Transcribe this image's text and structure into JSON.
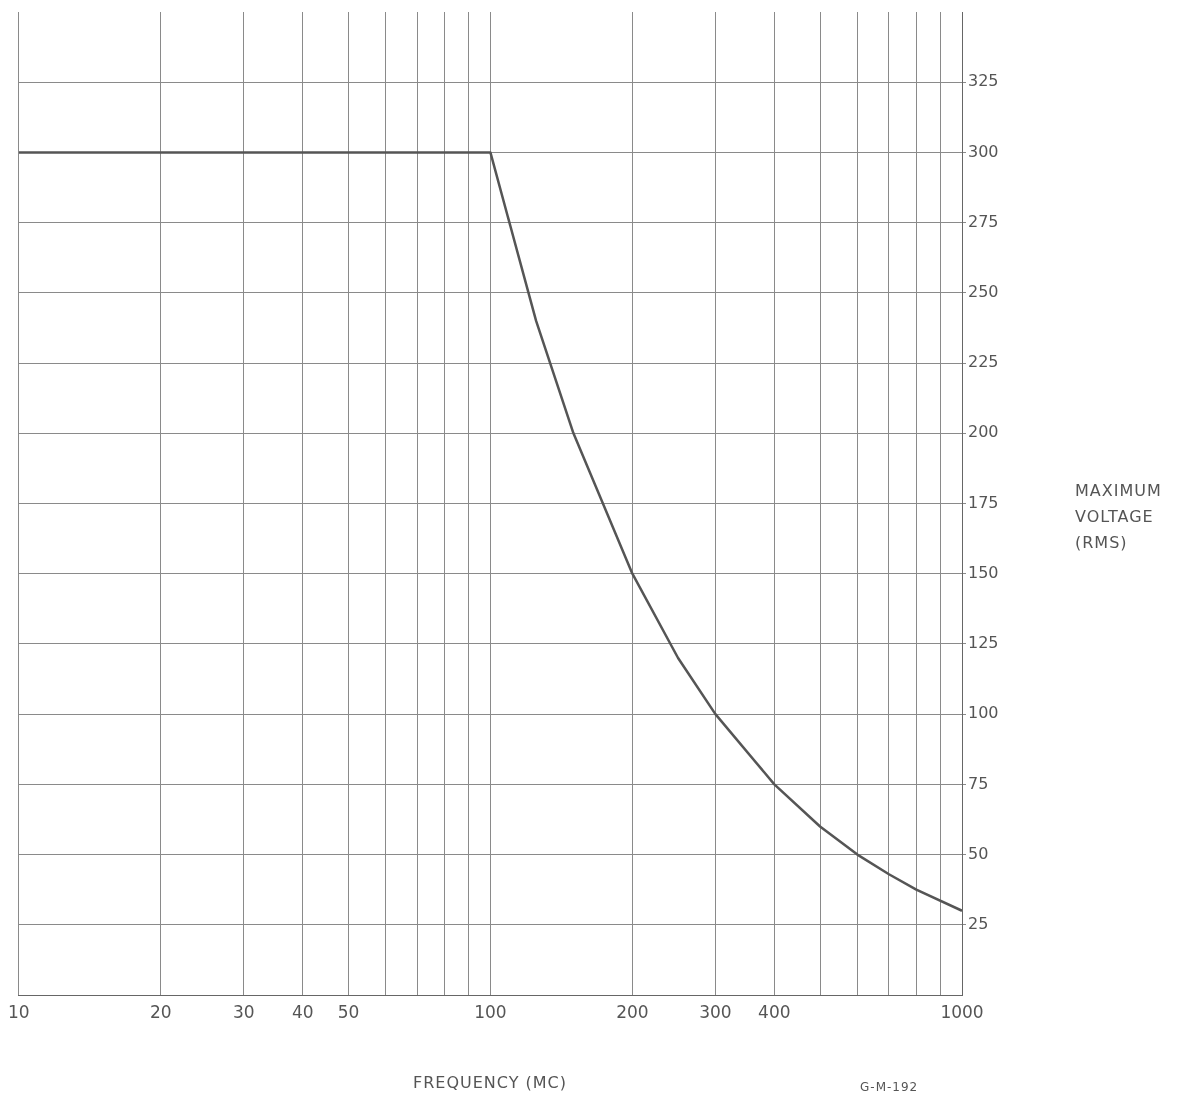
{
  "chart_data": {
    "type": "line",
    "xlabel": "FREQUENCY (MC)",
    "ylabel": "MAXIMUM VOLTAGE (RMS)",
    "annotations": [
      "G-M-192"
    ],
    "log": "x",
    "grid": true,
    "legend": false,
    "marker": "none",
    "line_style": "solid",
    "xlim": [
      10,
      1000
    ],
    "ylim": [
      0,
      350
    ],
    "xticks": [
      10,
      20,
      30,
      40,
      50,
      {
        "value": 60,
        "label": null
      },
      {
        "value": 70,
        "label": null
      },
      {
        "value": 80,
        "label": null
      },
      {
        "value": 90,
        "label": null
      },
      100,
      200,
      300,
      400,
      {
        "value": 500,
        "label": null
      },
      {
        "value": 600,
        "label": null
      },
      {
        "value": 700,
        "label": null
      },
      {
        "value": 800,
        "label": null
      },
      {
        "value": 900,
        "label": null
      },
      1000
    ],
    "yticks": [
      25,
      50,
      75,
      100,
      125,
      150,
      175,
      200,
      225,
      250,
      275,
      300,
      325
    ],
    "series": [
      {
        "color": "#555555",
        "x": [
          10,
          100,
          125,
          150,
          200,
          250,
          300,
          400,
          500,
          600,
          700,
          800,
          1000
        ],
        "values": [
          300,
          300,
          240,
          200,
          150,
          120,
          100,
          75,
          60,
          50,
          43,
          37.5,
          30
        ]
      }
    ]
  }
}
